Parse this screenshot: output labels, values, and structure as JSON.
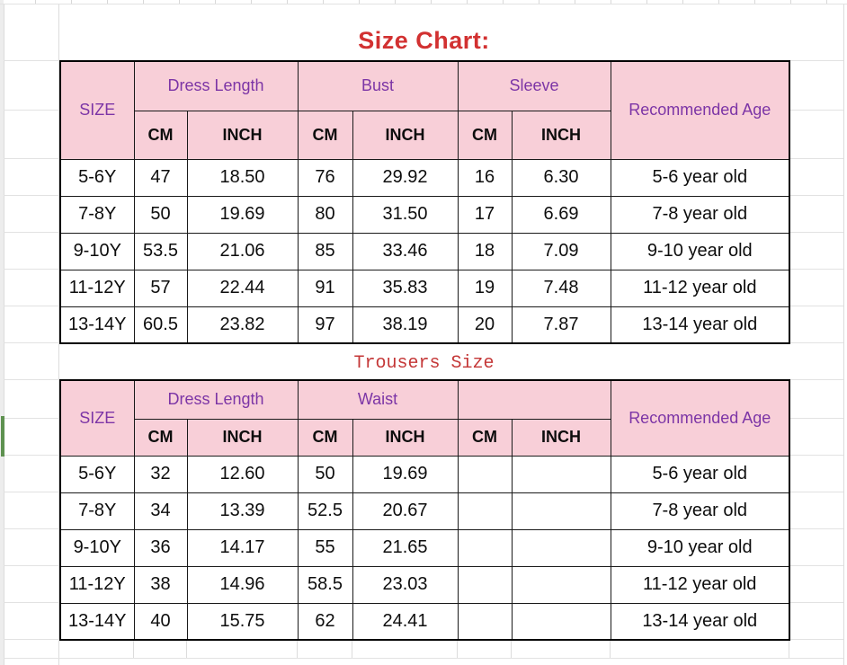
{
  "title": "Size Chart:",
  "trousers_title": "Trousers Size",
  "colors": {
    "header_fill": "#f8cfd8",
    "header_text_purple": "#7c35a6",
    "title_red": "#d23131",
    "trousers_title_red": "#c43737",
    "left_marker_green": "#5e9150"
  },
  "dress_table": {
    "size_header": "SIZE",
    "age_header": "Recommended Age",
    "groups": [
      "Dress Length",
      "Bust",
      "Sleeve"
    ],
    "units": [
      "CM",
      "INCH",
      "CM",
      "INCH",
      "CM",
      "INCH"
    ],
    "rows": [
      {
        "size": "5-6Y",
        "dress_cm": "47",
        "dress_inch": "18.50",
        "bust_cm": "76",
        "bust_inch": "29.92",
        "sleeve_cm": "16",
        "sleeve_inch": "6.30",
        "age": "5-6 year old"
      },
      {
        "size": "7-8Y",
        "dress_cm": "50",
        "dress_inch": "19.69",
        "bust_cm": "80",
        "bust_inch": "31.50",
        "sleeve_cm": "17",
        "sleeve_inch": "6.69",
        "age": "7-8 year old"
      },
      {
        "size": "9-10Y",
        "dress_cm": "53.5",
        "dress_inch": "21.06",
        "bust_cm": "85",
        "bust_inch": "33.46",
        "sleeve_cm": "18",
        "sleeve_inch": "7.09",
        "age": "9-10 year old"
      },
      {
        "size": "11-12Y",
        "dress_cm": "57",
        "dress_inch": "22.44",
        "bust_cm": "91",
        "bust_inch": "35.83",
        "sleeve_cm": "19",
        "sleeve_inch": "7.48",
        "age": "11-12 year old"
      },
      {
        "size": "13-14Y",
        "dress_cm": "60.5",
        "dress_inch": "23.82",
        "bust_cm": "97",
        "bust_inch": "38.19",
        "sleeve_cm": "20",
        "sleeve_inch": "7.87",
        "age": "13-14 year old"
      }
    ]
  },
  "trousers_table": {
    "size_header": "SIZE",
    "age_header": "Recommended Age",
    "groups": [
      "Dress Length",
      "Waist",
      ""
    ],
    "units": [
      "CM",
      "INCH",
      "CM",
      "INCH",
      "CM",
      "INCH"
    ],
    "rows": [
      {
        "size": "5-6Y",
        "length_cm": "32",
        "length_inch": "12.60",
        "waist_cm": "50",
        "waist_inch": "19.69",
        "extra_cm": "",
        "extra_inch": "",
        "age": "5-6 year old"
      },
      {
        "size": "7-8Y",
        "length_cm": "34",
        "length_inch": "13.39",
        "waist_cm": "52.5",
        "waist_inch": "20.67",
        "extra_cm": "",
        "extra_inch": "",
        "age": "7-8 year old"
      },
      {
        "size": "9-10Y",
        "length_cm": "36",
        "length_inch": "14.17",
        "waist_cm": "55",
        "waist_inch": "21.65",
        "extra_cm": "",
        "extra_inch": "",
        "age": "9-10 year old"
      },
      {
        "size": "11-12Y",
        "length_cm": "38",
        "length_inch": "14.96",
        "waist_cm": "58.5",
        "waist_inch": "23.03",
        "extra_cm": "",
        "extra_inch": "",
        "age": "11-12 year old"
      },
      {
        "size": "13-14Y",
        "length_cm": "40",
        "length_inch": "15.75",
        "waist_cm": "62",
        "waist_inch": "24.41",
        "extra_cm": "",
        "extra_inch": "",
        "age": "13-14 year old"
      }
    ]
  }
}
